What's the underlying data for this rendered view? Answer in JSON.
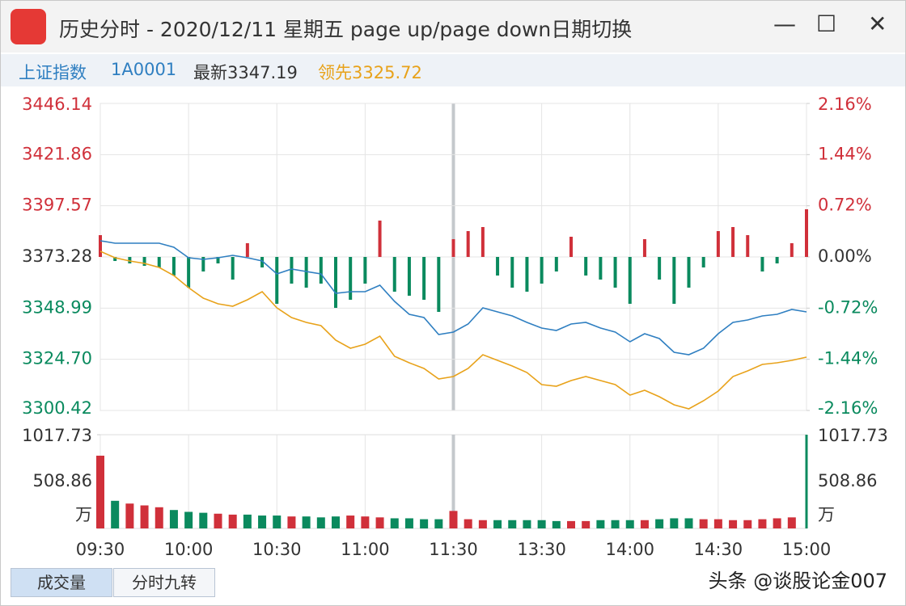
{
  "window": {
    "title": "历史分时 - 2020/12/11 星期五 page up/page down日期切换"
  },
  "info": {
    "name": "上证指数",
    "code": "1A0001",
    "latest": "最新3347.19",
    "leading": "领先3325.72"
  },
  "chart_data": [
    {
      "type": "line",
      "categories": [
        "09:30",
        null,
        null,
        null,
        null,
        null,
        "10:00",
        null,
        null,
        null,
        null,
        null,
        "10:30",
        null,
        null,
        null,
        null,
        null,
        "11:00",
        null,
        null,
        null,
        null,
        null,
        "11:30",
        null,
        null,
        null,
        null,
        null,
        "13:30",
        null,
        null,
        null,
        null,
        null,
        "14:00",
        null,
        null,
        null,
        null,
        null,
        "14:30",
        null,
        null,
        null,
        null,
        null,
        "15:00"
      ],
      "ylim": [
        3300.42,
        3446.14
      ],
      "yticks": [
        3300.42,
        {
          "value": 3324.7,
          "label": "3324.70"
        },
        3348.99,
        3373.28,
        3397.57,
        3421.86,
        3446.14
      ],
      "y2lim": [
        -2.16,
        2.16
      ],
      "y2ticks": [
        {
          "value": -2.16,
          "label": "-2.16%"
        },
        {
          "value": -1.44,
          "label": "-1.44%"
        },
        {
          "value": -0.72,
          "label": "-0.72%"
        },
        {
          "value": 0,
          "label": "0.00%"
        },
        {
          "value": 0.72,
          "label": "0.72%"
        },
        {
          "value": 1.44,
          "label": "1.44%"
        },
        {
          "value": 2.16,
          "label": "2.16%"
        }
      ],
      "grid": true,
      "series": [
        {
          "type": "bar",
          "base": 3373.28,
          "up_color": "#d0303a",
          "down_color": "#0a8a5e",
          "values": [
            3383.63,
            3371.36,
            3370.21,
            3369.06,
            3368.29,
            3364.46,
            3358.71,
            3366.38,
            3370.21,
            3362.54,
            3379.8,
            3368.29,
            3351.04,
            3360.62,
            3358.71,
            3360.62,
            3349.12,
            3352.95,
            3360.62,
            3390.54,
            3356.79,
            3354.87,
            3352.95,
            3347.2,
            3381.72,
            3385.55,
            3387.47,
            3364.46,
            3358.71,
            3356.79,
            3360.62,
            3366.38,
            3382.87,
            3364.46,
            3362.54,
            3358.71,
            3351.04,
            3381.72,
            3362.54,
            3351.04,
            3358.71,
            3368.29,
            3385.55,
            3387.47,
            3383.63,
            3366.38,
            3370.21,
            3379.8,
            3395.91
          ]
        },
        {
          "color": "#2f7fc1",
          "values": [
            3380.95,
            3379.8,
            3379.8,
            3379.8,
            3379.8,
            3377.88,
            3372.9,
            3372.13,
            3372.9,
            3374.05,
            3372.9,
            3371.36,
            3365.23,
            3367.53,
            3366.38,
            3365.23,
            3356.02,
            3356.79,
            3356.79,
            3359.86,
            3352.19,
            3346.05,
            3344.52,
            3336.46,
            3337.61,
            3341.45,
            3349.12,
            3347.2,
            3345.28,
            3342.22,
            3339.53,
            3338.38,
            3341.45,
            3342.22,
            3339.53,
            3337.61,
            3333.01,
            3336.85,
            3334.55,
            3328.03,
            3326.88,
            3329.94,
            3336.85,
            3342.22,
            3343.37,
            3345.28,
            3346.05,
            3348.35,
            3347.19
          ]
        },
        {
          "color": "#e8a21a",
          "values": [
            3375.96,
            3372.9,
            3371.36,
            3370.21,
            3368.29,
            3364.46,
            3358.71,
            3353.72,
            3351.04,
            3349.89,
            3352.95,
            3356.79,
            3349.12,
            3344.52,
            3342.22,
            3340.68,
            3333.78,
            3329.94,
            3331.86,
            3335.7,
            3326.11,
            3323.04,
            3320.36,
            3315.37,
            3316.52,
            3320.36,
            3326.88,
            3324.19,
            3321.51,
            3318.44,
            3312.69,
            3311.92,
            3314.6,
            3316.52,
            3314.6,
            3312.69,
            3307.7,
            3310.0,
            3306.93,
            3303.1,
            3301.18,
            3305.02,
            3309.62,
            3316.52,
            3319.21,
            3322.27,
            3323.04,
            3324.19,
            3325.72
          ]
        }
      ]
    },
    {
      "type": "bar",
      "ylim": [
        0,
        1017.73
      ],
      "yticks": [
        {
          "value": 0,
          "label": "万"
        },
        508.86,
        1017.73
      ],
      "up_color": "#d0303a",
      "down_color": "#0a8a5e",
      "values": [
        790,
        300,
        270,
        250,
        230,
        200,
        180,
        170,
        160,
        150,
        150,
        140,
        140,
        130,
        130,
        120,
        130,
        140,
        130,
        120,
        110,
        110,
        100,
        100,
        190,
        100,
        90,
        90,
        90,
        90,
        90,
        80,
        80,
        80,
        90,
        90,
        90,
        90,
        100,
        110,
        110,
        100,
        100,
        90,
        90,
        100,
        110,
        120,
        1017.73
      ]
    }
  ],
  "tabs": [
    "成交量",
    "分时九转"
  ],
  "watermark": "头条 @谈股论金007"
}
